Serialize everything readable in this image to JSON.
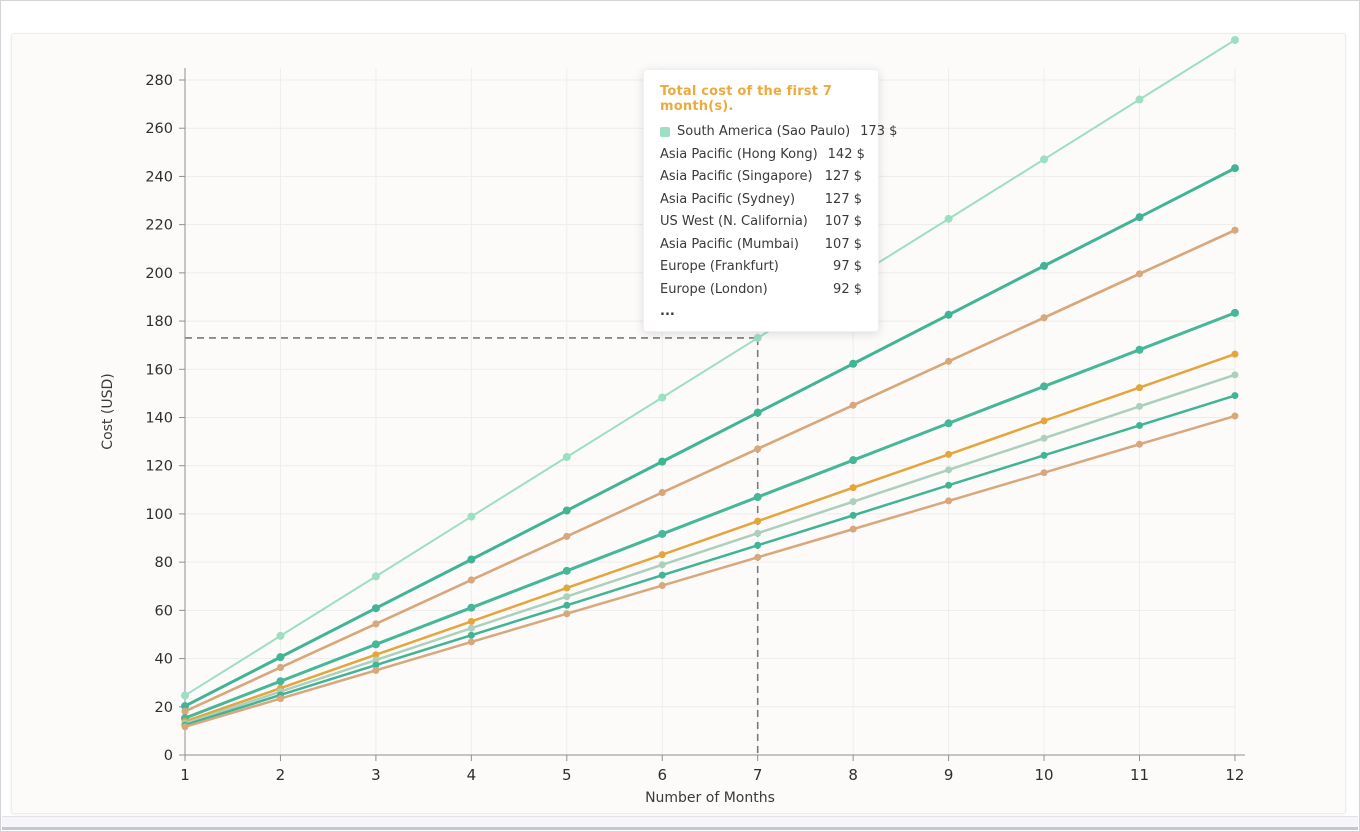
{
  "chart_data": {
    "type": "line",
    "title": "",
    "xlabel": "Number of Months",
    "ylabel": "Cost (USD)",
    "x": [
      1,
      2,
      3,
      4,
      5,
      6,
      7,
      8,
      9,
      10,
      11,
      12
    ],
    "xlim": [
      1,
      12
    ],
    "ylim": [
      0,
      290
    ],
    "y_ticks": [
      0,
      20,
      40,
      60,
      80,
      100,
      120,
      140,
      160,
      180,
      200,
      220,
      240,
      260,
      280
    ],
    "grid": true,
    "legend_position": "tooltip-overlay",
    "style": {
      "grid_color": "#ededed",
      "axis_color": "#8f8f8f",
      "tick_label_color": "#2e2e2e",
      "axis_name_color": "#3a3a3a",
      "crosshair_color": "#7a7a7a",
      "plot_background": "#fdfbfa"
    },
    "crosshair": {
      "month": 7,
      "value": 173
    },
    "series": [
      {
        "name": "South America (Sao Paulo)",
        "color": "#9cdfc3",
        "line_width": 2,
        "dot_radius": 4,
        "total_first_7_months": 173,
        "values": [
          24.7,
          49.4,
          74.1,
          98.9,
          123.6,
          148.3,
          173,
          197.7,
          222.4,
          247.1,
          271.9,
          296.6
        ]
      },
      {
        "name": "Asia Pacific (Hong Kong)",
        "color": "#41b495",
        "line_width": 3,
        "dot_radius": 4,
        "total_first_7_months": 142,
        "values": [
          20.3,
          40.6,
          60.9,
          81.1,
          101.4,
          121.7,
          142,
          162.3,
          182.6,
          202.9,
          223.1,
          243.4
        ]
      },
      {
        "name": "Asia Pacific (Singapore)",
        "color": "#dcab82",
        "line_width": 2.5,
        "dot_radius": 3.5,
        "total_first_7_months": 127,
        "values": [
          18.1,
          36.3,
          54.4,
          72.6,
          90.7,
          108.9,
          127,
          145.1,
          163.3,
          181.4,
          199.6,
          217.7
        ]
      },
      {
        "name": "Asia Pacific (Sydney)",
        "color": "#d9a77c",
        "line_width": 2.5,
        "dot_radius": 3.5,
        "total_first_7_months": 127,
        "values": [
          18.1,
          36.3,
          54.4,
          72.6,
          90.7,
          108.9,
          127,
          145.1,
          163.3,
          181.4,
          199.6,
          217.7
        ]
      },
      {
        "name": "US West (N. California)",
        "color": "#41b495",
        "line_width": 3,
        "dot_radius": 4,
        "total_first_7_months": 107,
        "values": [
          15.3,
          30.6,
          45.9,
          61.1,
          76.4,
          91.7,
          107,
          122.3,
          137.6,
          152.9,
          168.1,
          183.4
        ]
      },
      {
        "name": "Asia Pacific (Mumbai)",
        "color": "#46b798",
        "line_width": 2.5,
        "dot_radius": 3.5,
        "total_first_7_months": 107,
        "values": [
          15.3,
          30.6,
          45.9,
          61.1,
          76.4,
          91.7,
          107,
          122.3,
          137.6,
          152.9,
          168.1,
          183.4
        ]
      },
      {
        "name": "Europe (Frankfurt)",
        "color": "#e3a53c",
        "line_width": 2.5,
        "dot_radius": 3.5,
        "total_first_7_months": 97,
        "values": [
          13.9,
          27.7,
          41.6,
          55.4,
          69.3,
          83.1,
          97,
          110.9,
          124.7,
          138.6,
          152.4,
          166.3
        ]
      },
      {
        "name": "Europe (London)",
        "color": "#abd0bc",
        "line_width": 2.5,
        "dot_radius": 3.5,
        "total_first_7_months": 92,
        "values": [
          13.1,
          26.3,
          39.4,
          52.6,
          65.7,
          78.9,
          92,
          105.1,
          118.3,
          131.4,
          144.6,
          157.7
        ]
      },
      {
        "name": "…",
        "color": "#41b495",
        "line_width": 2.5,
        "dot_radius": 3.5,
        "total_first_7_months": 87,
        "values": [
          12.4,
          24.9,
          37.3,
          49.7,
          62.1,
          74.6,
          87,
          99.4,
          111.9,
          124.3,
          136.7,
          149.1
        ]
      },
      {
        "name": "…",
        "color": "#d9a77c",
        "line_width": 2.5,
        "dot_radius": 3.5,
        "total_first_7_months": 82,
        "values": [
          11.7,
          23.4,
          35.1,
          46.9,
          58.6,
          70.3,
          82,
          93.7,
          105.4,
          117.1,
          128.9,
          140.6
        ]
      }
    ]
  },
  "tooltip": {
    "title": "Total cost of the first 7 month(s).",
    "title_color": "#edaa3c",
    "rows": [
      {
        "name": "South America (Sao Paulo)",
        "value": "173 $",
        "marker_color": "#9cdfc3"
      },
      {
        "name": "Asia Pacific (Hong Kong)",
        "value": "142 $"
      },
      {
        "name": "Asia Pacific (Singapore)",
        "value": "127 $"
      },
      {
        "name": "Asia Pacific (Sydney)",
        "value": "127 $"
      },
      {
        "name": "US West (N. California)",
        "value": "107 $"
      },
      {
        "name": "Asia Pacific (Mumbai)",
        "value": "107 $"
      },
      {
        "name": "Europe (Frankfurt)",
        "value": "97 $"
      },
      {
        "name": "Europe (London)",
        "value": "92 $"
      },
      {
        "name": "...",
        "value": ""
      }
    ]
  }
}
